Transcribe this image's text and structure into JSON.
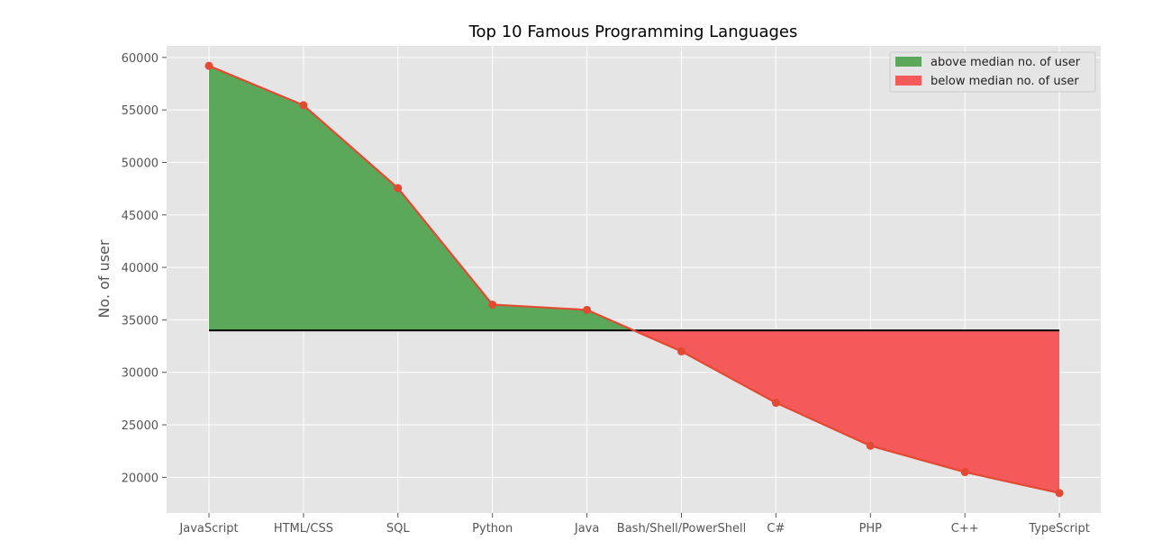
{
  "chart_data": {
    "type": "area",
    "title": "Top 10 Famous Programming Languages",
    "xlabel": "",
    "ylabel": "No. of user",
    "categories": [
      "JavaScript",
      "HTML/CSS",
      "SQL",
      "Python",
      "Java",
      "Bash/Shell/PowerShell",
      "C#",
      "PHP",
      "C++",
      "TypeScript"
    ],
    "series": [
      {
        "values": [
          59200,
          55450,
          47550,
          36450,
          35950,
          32000,
          27100,
          23000,
          20500,
          18500
        ],
        "color": "#e24a33"
      }
    ],
    "median": 34000,
    "ylim": [
      16600,
      61100
    ],
    "yticks": [
      20000,
      25000,
      30000,
      35000,
      40000,
      45000,
      50000,
      55000,
      60000
    ],
    "grid": true,
    "legend": {
      "position": "top-right",
      "entries": [
        {
          "label": "above median no. of user",
          "color": "#5ba85a"
        },
        {
          "label": "below median no. of user",
          "color": "#f55a5a"
        }
      ]
    },
    "colors": {
      "above": "#5ba85a",
      "below": "#f55a5a",
      "line": "#e24a33",
      "median_line": "#000000",
      "plot_bg": "#e5e5e5"
    }
  }
}
